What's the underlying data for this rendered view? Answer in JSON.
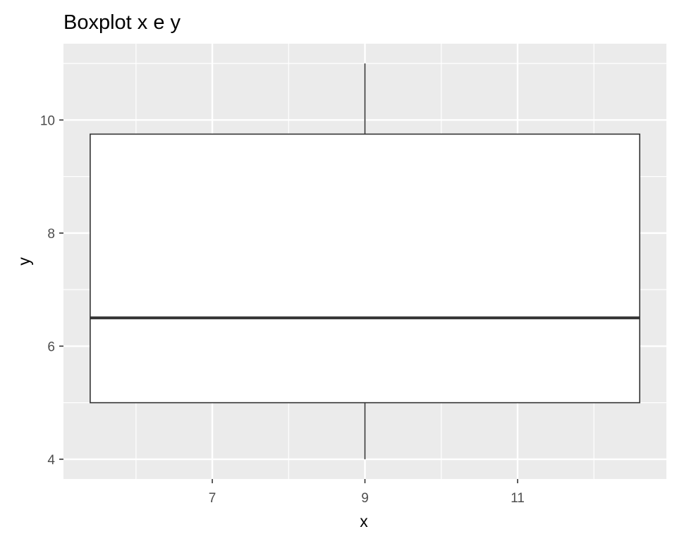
{
  "chart_data": {
    "type": "boxplot",
    "title": "Boxplot x e y",
    "xlabel": "x",
    "ylabel": "y",
    "xlim": [
      5.05,
      12.95
    ],
    "ylim": [
      3.65,
      11.35
    ],
    "x_ticks": [
      7,
      9,
      11
    ],
    "x_minor_ticks": [
      6,
      8,
      10,
      12
    ],
    "y_ticks": [
      4,
      6,
      8,
      10
    ],
    "y_minor_ticks": [
      5,
      7,
      9,
      11
    ],
    "grid": true,
    "legend": "none",
    "boxes": [
      {
        "x_center": 9,
        "x_start": 5.4,
        "x_end": 12.6,
        "min": 4,
        "q1": 5,
        "median": 6.5,
        "q3": 9.75,
        "max": 11
      }
    ],
    "colors": {
      "panel_background": "#ebebeb",
      "grid_line": "#ffffff",
      "box_fill": "#ffffff",
      "box_outline": "#333333",
      "tick_label": "#4d4d4d",
      "text": "#000000"
    }
  }
}
